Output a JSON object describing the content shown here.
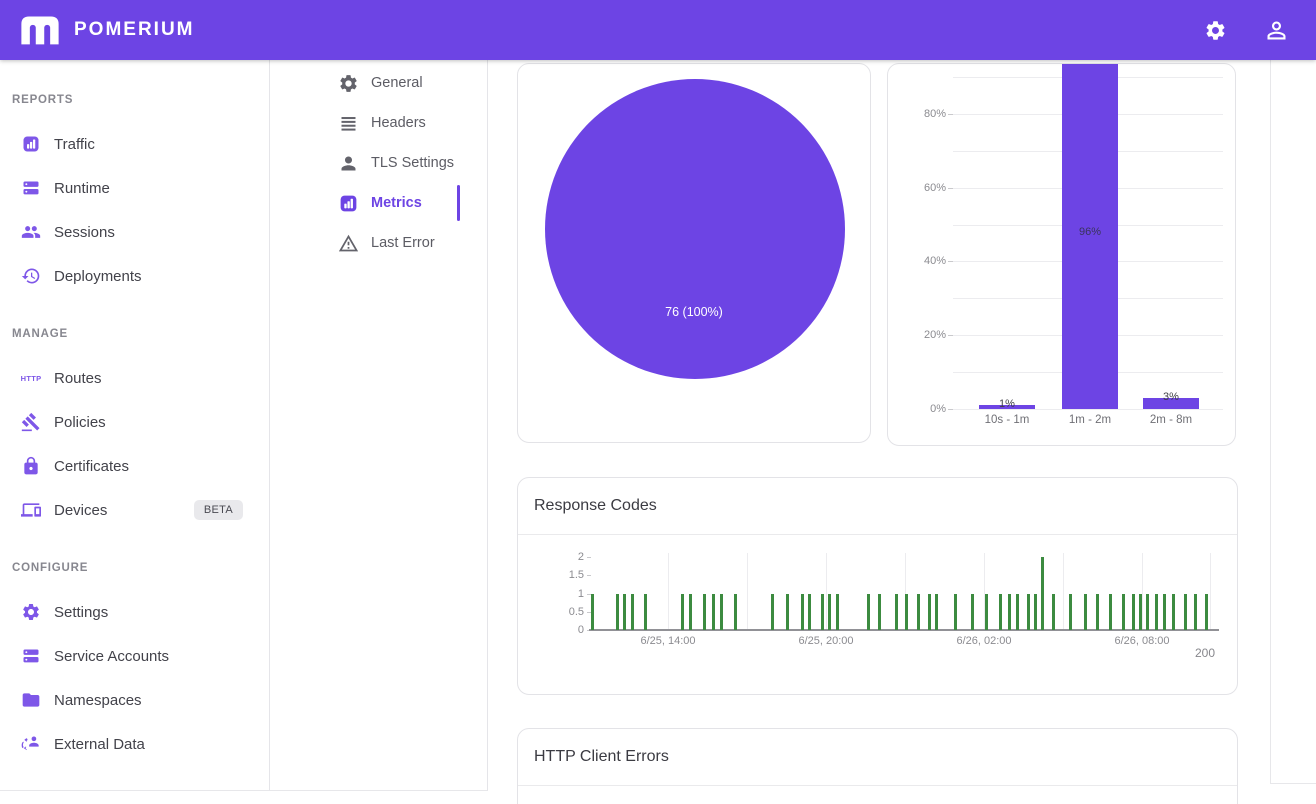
{
  "header": {
    "brand": "POMERIUM",
    "actions": [
      {
        "name": "settings",
        "icon": "gear-icon"
      },
      {
        "name": "account",
        "icon": "person-outline-icon"
      }
    ]
  },
  "sidebar": {
    "sections": [
      {
        "label": "REPORTS",
        "items": [
          {
            "label": "Traffic",
            "icon": "traffic-chart-icon"
          },
          {
            "label": "Runtime",
            "icon": "storage-icon"
          },
          {
            "label": "Sessions",
            "icon": "people-icon"
          },
          {
            "label": "Deployments",
            "icon": "history-icon"
          }
        ]
      },
      {
        "label": "MANAGE",
        "items": [
          {
            "label": "Routes",
            "icon": "http-icon"
          },
          {
            "label": "Policies",
            "icon": "gavel-icon"
          },
          {
            "label": "Certificates",
            "icon": "lock-icon"
          },
          {
            "label": "Devices",
            "icon": "devices-icon",
            "badge": "BETA"
          }
        ]
      },
      {
        "label": "CONFIGURE",
        "items": [
          {
            "label": "Settings",
            "icon": "gear-icon"
          },
          {
            "label": "Service Accounts",
            "icon": "storage-icon"
          },
          {
            "label": "Namespaces",
            "icon": "folder-icon"
          },
          {
            "label": "External Data",
            "icon": "external-data-icon"
          }
        ]
      }
    ]
  },
  "subnav": {
    "items": [
      {
        "label": "General",
        "icon": "gear-outline-icon",
        "selected": false
      },
      {
        "label": "Headers",
        "icon": "lines-icon",
        "selected": false
      },
      {
        "label": "TLS Settings",
        "icon": "person-icon",
        "selected": false
      },
      {
        "label": "Metrics",
        "icon": "bar-chart-icon",
        "selected": true
      },
      {
        "label": "Last Error",
        "icon": "warning-icon",
        "selected": false
      }
    ]
  },
  "colors": {
    "brand_purple": "#6d44e4",
    "sidebar_icon_purple": "#7e57e8",
    "chart_purple": "#6d44e4",
    "chart_green": "#3c8b40",
    "card_border": "#e3e3e7",
    "text_primary": "#3f3f46",
    "section_label": "#87878f",
    "axis_text": "#8b8b90",
    "beta_badge_bg": "#e9e9ec"
  },
  "chart_data": [
    {
      "id": "requests-pie",
      "type": "pie",
      "slices": [
        {
          "label": "76 (100%)",
          "value": 76,
          "percent": 100,
          "color": "#6d44e4"
        }
      ],
      "label_color": "#ffffff",
      "note": "single full-circle slice, label inside"
    },
    {
      "id": "duration-histogram",
      "type": "bar",
      "categories": [
        "10s - 1m",
        "1m - 2m",
        "2m - 8m"
      ],
      "values": [
        1,
        96,
        3
      ],
      "value_labels": [
        "1%",
        "96%",
        "3%"
      ],
      "ylim": [
        0,
        100
      ],
      "yticks": [
        "0%",
        "20%",
        "40%",
        "60%",
        "80%"
      ],
      "grid": "horizontal every 10%",
      "bar_color": "#6d44e4",
      "note": "96% bar clipped at top edge of viewport"
    },
    {
      "id": "response-codes",
      "type": "bar",
      "title": "Response Codes",
      "legend": [
        "200"
      ],
      "legend_position": "bottom-right",
      "bar_color": "#3c8b40",
      "ylim": [
        0,
        2
      ],
      "yticks": [
        "2",
        "1.5",
        "1",
        "0.5",
        "0"
      ],
      "xticklabels": [
        "6/25, 14:00",
        "6/25, 20:00",
        "6/26, 02:00",
        "6/26, 08:00"
      ],
      "points_format": "[x_fraction_of_plot_width, count]",
      "points": [
        [
          0.005,
          1
        ],
        [
          0.045,
          1
        ],
        [
          0.057,
          1
        ],
        [
          0.07,
          1
        ],
        [
          0.09,
          1
        ],
        [
          0.15,
          1
        ],
        [
          0.163,
          1
        ],
        [
          0.185,
          1
        ],
        [
          0.2,
          1
        ],
        [
          0.213,
          1
        ],
        [
          0.235,
          1
        ],
        [
          0.295,
          1
        ],
        [
          0.32,
          1
        ],
        [
          0.343,
          1
        ],
        [
          0.355,
          1
        ],
        [
          0.375,
          1
        ],
        [
          0.387,
          1
        ],
        [
          0.4,
          1
        ],
        [
          0.45,
          1
        ],
        [
          0.468,
          1
        ],
        [
          0.495,
          1
        ],
        [
          0.512,
          1
        ],
        [
          0.53,
          1
        ],
        [
          0.548,
          1
        ],
        [
          0.56,
          1
        ],
        [
          0.59,
          1
        ],
        [
          0.618,
          1
        ],
        [
          0.64,
          1
        ],
        [
          0.663,
          1
        ],
        [
          0.678,
          1
        ],
        [
          0.69,
          1
        ],
        [
          0.708,
          1
        ],
        [
          0.72,
          1
        ],
        [
          0.73,
          2
        ],
        [
          0.748,
          1
        ],
        [
          0.775,
          1
        ],
        [
          0.8,
          1
        ],
        [
          0.82,
          1
        ],
        [
          0.84,
          1
        ],
        [
          0.862,
          1
        ],
        [
          0.878,
          1
        ],
        [
          0.888,
          1
        ],
        [
          0.9,
          1
        ],
        [
          0.915,
          1
        ],
        [
          0.927,
          1
        ],
        [
          0.942,
          1
        ],
        [
          0.962,
          1
        ],
        [
          0.978,
          1
        ],
        [
          0.995,
          1
        ]
      ]
    },
    {
      "id": "http-client-errors",
      "type": "bar",
      "title": "HTTP Client Errors",
      "note": "card clipped at bottom edge of viewport"
    }
  ]
}
